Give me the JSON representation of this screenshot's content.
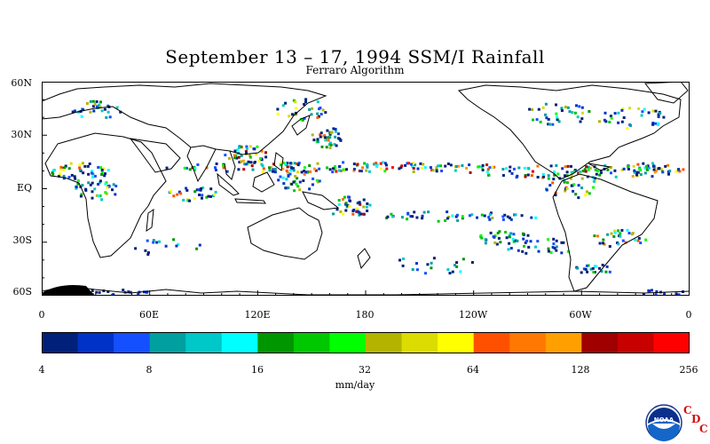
{
  "title": "September 13 – 17, 1994 SSM/I Rainfall",
  "subtitle": "Ferraro Algorithm",
  "lat_labels": [
    "60N",
    "30N",
    "EQ",
    "30S",
    "60S"
  ],
  "lon_labels": [
    "0",
    "60E",
    "120E",
    "180",
    "120W",
    "60W",
    "0"
  ],
  "colorbar": {
    "unit": "mm/day",
    "tick_labels": [
      "4",
      "8",
      "16",
      "32",
      "64",
      "128",
      "256"
    ],
    "colors": [
      "#00207a",
      "#0032c8",
      "#1450ff",
      "#00a0a0",
      "#00c8c8",
      "#00ffff",
      "#009600",
      "#00c800",
      "#00ff00",
      "#b4b400",
      "#dcdc00",
      "#ffff00",
      "#ff5000",
      "#ff7800",
      "#ffa000",
      "#a00000",
      "#c80000",
      "#ff0000"
    ]
  },
  "logo": {
    "text": "NOAA",
    "cdc": [
      "C",
      "D",
      "C"
    ]
  }
}
